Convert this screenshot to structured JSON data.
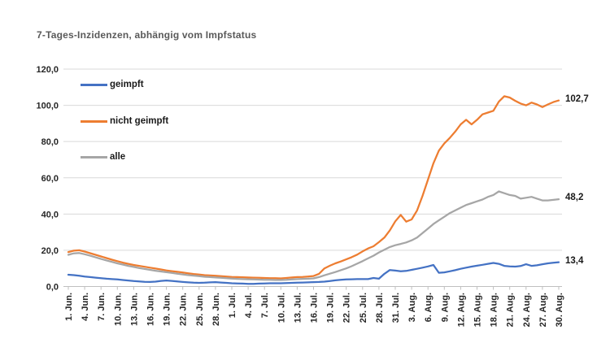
{
  "chart_data": {
    "type": "line",
    "title": "7-Tages-Inzidenzen, abhängig vom Impfstatus",
    "ylim": [
      0,
      120
    ],
    "ytick_step": 20,
    "y_tick_labels": [
      "0,0",
      "20,0",
      "40,0",
      "60,0",
      "80,0",
      "100,0",
      "120,0"
    ],
    "tick_every": 3,
    "grid": true,
    "legend_position": "inside-top-left",
    "categories": [
      "1. Jun.",
      "4. Jun.",
      "7. Jun.",
      "10. Jun.",
      "13. Jun.",
      "16. Jun.",
      "19. Jun.",
      "22. Jun.",
      "25. Jun.",
      "28. Jun.",
      "1. Jul.",
      "4. Jul.",
      "7. Jul.",
      "10. Jul.",
      "13. Jul.",
      "16. Jul.",
      "19. Jul.",
      "22. Jul.",
      "25. Jul.",
      "28. Jul.",
      "31. Jul.",
      "3. Aug.",
      "6. Aug.",
      "9. Aug.",
      "12. Aug.",
      "15. Aug.",
      "18. Aug.",
      "21. Aug.",
      "24. Aug.",
      "27. Aug.",
      "30. Aug."
    ],
    "series": [
      {
        "name": "geimpft",
        "color": "#4472C4",
        "end_label": "13,4",
        "values": [
          6.5,
          6.3,
          5.9,
          5.5,
          5.2,
          4.9,
          4.6,
          4.3,
          4.1,
          3.9,
          3.6,
          3.3,
          3.0,
          2.8,
          2.6,
          2.5,
          2.7,
          3.1,
          3.3,
          3.1,
          2.8,
          2.5,
          2.3,
          2.1,
          2.0,
          2.1,
          2.3,
          2.4,
          2.2,
          2.0,
          1.8,
          1.7,
          1.6,
          1.5,
          1.5,
          1.6,
          1.7,
          1.8,
          1.8,
          1.8,
          1.9,
          2.0,
          2.1,
          2.2,
          2.3,
          2.4,
          2.5,
          2.7,
          3.0,
          3.4,
          3.7,
          3.9,
          4.0,
          4.1,
          4.1,
          4.1,
          4.7,
          4.3,
          7.0,
          9.1,
          8.8,
          8.4,
          8.6,
          9.2,
          9.8,
          10.4,
          11.1,
          11.9,
          7.6,
          7.8,
          8.4,
          9.0,
          9.8,
          10.4,
          11.0,
          11.5,
          12.0,
          12.5,
          13.0,
          12.5,
          11.4,
          11.1,
          11.0,
          11.3,
          12.3,
          11.4,
          11.7,
          12.3,
          12.8,
          13.1,
          13.4
        ]
      },
      {
        "name": "nicht geimpft",
        "color": "#ED7D31",
        "end_label": "102,7",
        "values": [
          19.0,
          19.8,
          20.0,
          19.3,
          18.4,
          17.5,
          16.6,
          15.7,
          14.8,
          14.0,
          13.2,
          12.5,
          11.9,
          11.4,
          10.9,
          10.4,
          9.9,
          9.4,
          8.9,
          8.5,
          8.1,
          7.7,
          7.3,
          6.9,
          6.6,
          6.3,
          6.1,
          5.9,
          5.7,
          5.5,
          5.3,
          5.2,
          5.1,
          5.0,
          4.9,
          4.8,
          4.7,
          4.6,
          4.6,
          4.5,
          4.7,
          5.0,
          5.2,
          5.3,
          5.5,
          5.8,
          7.0,
          10.0,
          11.5,
          12.8,
          13.8,
          15.0,
          16.2,
          17.6,
          19.4,
          21.0,
          22.2,
          24.5,
          27.0,
          31.0,
          36.0,
          39.5,
          35.8,
          37.0,
          42.0,
          50.0,
          59.0,
          68.0,
          75.0,
          79.0,
          82.0,
          85.5,
          89.5,
          92.0,
          89.5,
          92.0,
          95.0,
          96.0,
          97.0,
          102.0,
          105.0,
          104.3,
          102.5,
          101.0,
          100.0,
          101.5,
          100.5,
          99.0,
          100.5,
          101.8,
          102.7
        ]
      },
      {
        "name": "alle",
        "color": "#A6A6A6",
        "end_label": "48,2",
        "values": [
          17.5,
          18.3,
          18.5,
          17.8,
          17.0,
          16.1,
          15.2,
          14.4,
          13.6,
          12.8,
          12.1,
          11.4,
          10.8,
          10.2,
          9.7,
          9.2,
          8.7,
          8.3,
          7.9,
          7.5,
          7.1,
          6.7,
          6.3,
          6.0,
          5.7,
          5.4,
          5.2,
          5.0,
          4.8,
          4.6,
          4.4,
          4.2,
          4.1,
          4.0,
          3.9,
          3.8,
          3.7,
          3.7,
          3.6,
          3.6,
          3.7,
          3.9,
          4.1,
          4.2,
          4.3,
          4.5,
          5.2,
          6.2,
          7.1,
          8.0,
          9.0,
          10.0,
          11.2,
          12.6,
          14.0,
          15.5,
          17.0,
          18.8,
          20.3,
          21.8,
          22.8,
          23.5,
          24.3,
          25.5,
          27.0,
          29.5,
          32.0,
          34.5,
          36.5,
          38.5,
          40.5,
          42.0,
          43.5,
          45.0,
          46.0,
          47.0,
          48.0,
          49.5,
          50.5,
          52.5,
          51.5,
          50.5,
          50.0,
          48.5,
          49.0,
          49.5,
          48.5,
          47.5,
          47.5,
          47.8,
          48.2
        ]
      }
    ],
    "colors": {
      "gridline": "#D9D9D9",
      "axis": "#BFBFBF",
      "title": "#595959",
      "tick_text": "#262626",
      "background": "#ffffff"
    }
  }
}
